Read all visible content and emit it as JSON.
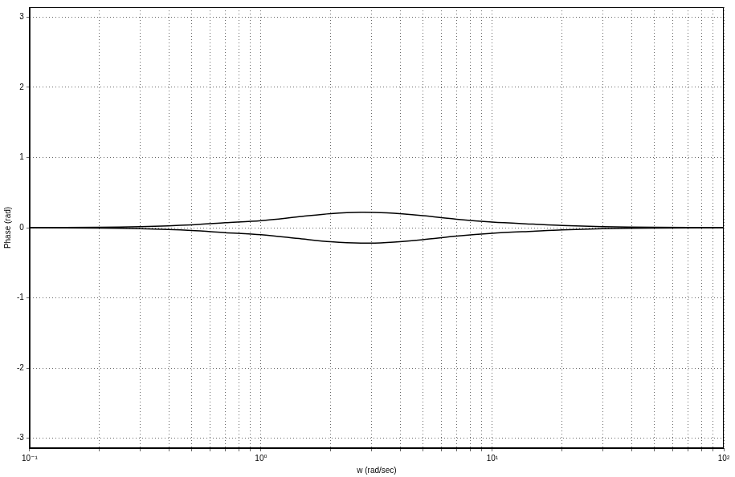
{
  "chart_data": {
    "type": "line",
    "x_label": "w (rad/sec)",
    "y_label": "Phase (rad)",
    "log": "x",
    "grid": true,
    "xlim": [
      0.1,
      100
    ],
    "xticks": [
      {
        "value": 0.1,
        "label": "10⁻¹"
      },
      {
        "value": 1,
        "label": "10⁰"
      },
      {
        "value": 10,
        "label": "10¹"
      },
      {
        "value": 100,
        "label": "10²"
      }
    ],
    "ylim": [
      -3.14,
      3.14
    ],
    "yticks": [
      -3,
      -2,
      -1,
      0,
      1,
      2,
      3
    ],
    "x": [
      0.1,
      0.2,
      0.3,
      0.5,
      0.7,
      1,
      1.5,
      2,
      2.7,
      3.5,
      5,
      7,
      10,
      15,
      20,
      30,
      50,
      100
    ],
    "series": [
      {
        "color": "#000000",
        "line_style": "solid",
        "values": [
          0,
          0.005,
          0.015,
          0.04,
          0.07,
          0.1,
          0.16,
          0.2,
          0.22,
          0.21,
          0.17,
          0.12,
          0.08,
          0.05,
          0.03,
          0.015,
          0.005,
          0
        ]
      },
      {
        "color": "#000000",
        "line_style": "solid",
        "values": [
          0,
          -0.005,
          -0.015,
          -0.04,
          -0.07,
          -0.1,
          -0.16,
          -0.2,
          -0.22,
          -0.21,
          -0.17,
          -0.12,
          -0.08,
          -0.05,
          -0.03,
          -0.015,
          -0.005,
          0
        ]
      }
    ]
  }
}
